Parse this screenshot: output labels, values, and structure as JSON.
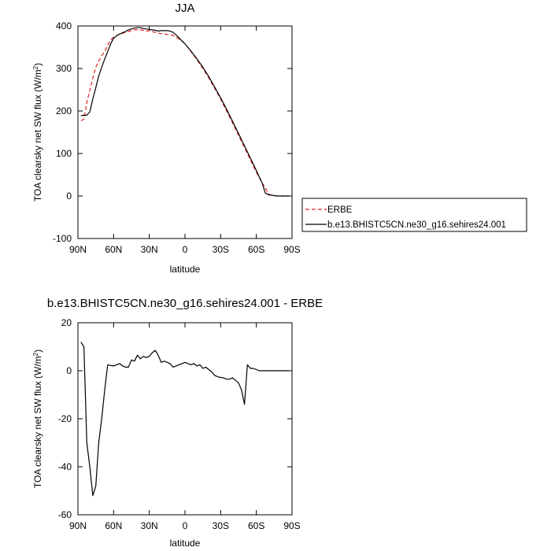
{
  "chart_data": [
    {
      "type": "line",
      "title": "JJA",
      "xlabel": "latitude",
      "ylabel": "TOA clearsky net SW flux (W/m",
      "ylabel_sup": "2",
      "ylabel_close": ")",
      "ylim": [
        -100,
        400
      ],
      "xlim": [
        90,
        -90
      ],
      "x_tick_values": [
        90,
        60,
        30,
        0,
        -30,
        -60,
        -90
      ],
      "x_tick_labels": [
        "90N",
        "60N",
        "30N",
        "0",
        "30S",
        "60S",
        "90S"
      ],
      "y_tick_values": [
        -100,
        0,
        100,
        200,
        300,
        400
      ],
      "y_tick_labels": [
        "-100",
        "0",
        "100",
        "200",
        "300",
        "400"
      ],
      "grid": false,
      "legend_position": "right",
      "series": [
        {
          "name": "ERBE",
          "color": "#e02020",
          "dash": "dashed",
          "x": [
            87.5,
            85,
            82.5,
            80,
            77.5,
            75,
            72.5,
            70,
            67.5,
            65,
            62.5,
            60,
            57.5,
            55,
            52.5,
            50,
            47.5,
            45,
            42.5,
            40,
            37.5,
            35,
            32.5,
            30,
            27.5,
            25,
            22.5,
            20,
            17.5,
            15,
            12.5,
            10,
            7.5,
            5,
            2.5,
            0,
            -5,
            -10,
            -15,
            -20,
            -25,
            -30,
            -35,
            -40,
            -45,
            -50,
            -55,
            -60,
            -62.5,
            -65,
            -67.5,
            -70,
            -72.5,
            -75,
            -77.5,
            -80,
            -82.5,
            -85,
            -87.5
          ],
          "values": [
            177,
            181,
            220,
            248,
            278,
            303,
            318,
            330,
            340,
            355,
            367,
            374,
            377,
            381,
            383,
            385,
            387,
            389,
            391,
            391,
            391,
            390,
            388,
            389,
            387,
            385,
            383,
            382,
            381,
            380,
            380,
            378,
            374,
            369,
            364,
            358,
            340,
            321,
            300,
            278,
            253,
            228,
            200,
            172,
            143,
            114,
            85,
            56,
            43,
            30,
            20,
            5,
            2,
            1,
            0,
            0,
            0,
            0,
            0
          ]
        },
        {
          "name": "b.e13.BHISTC5CN.ne30_g16.sehires24.001",
          "color": "#000000",
          "dash": "solid",
          "x": [
            87.5,
            85,
            82.5,
            80,
            77.5,
            75,
            72.5,
            70,
            67.5,
            65,
            62.5,
            60,
            57.5,
            55,
            52.5,
            50,
            47.5,
            45,
            42.5,
            40,
            37.5,
            35,
            32.5,
            30,
            27.5,
            25,
            22.5,
            20,
            17.5,
            15,
            12.5,
            10,
            7.5,
            5,
            2.5,
            0,
            -5,
            -10,
            -15,
            -20,
            -25,
            -30,
            -35,
            -40,
            -45,
            -50,
            -55,
            -60,
            -62.5,
            -65,
            -67.5,
            -70,
            -72.5,
            -75,
            -77.5,
            -80,
            -82.5,
            -85,
            -87.5
          ],
          "values": [
            189,
            190,
            190,
            198,
            228,
            255,
            282,
            303,
            322,
            340,
            358,
            371,
            377,
            381,
            384,
            387,
            391,
            393,
            395,
            396,
            396,
            394,
            393,
            392,
            391,
            390,
            388,
            389,
            389,
            389,
            388,
            385,
            379,
            372,
            365,
            358,
            341,
            323,
            303,
            281,
            256,
            231,
            204,
            176,
            147,
            118,
            89,
            60,
            45,
            30,
            7,
            3,
            2,
            1,
            0,
            0,
            0,
            0,
            0
          ]
        }
      ]
    },
    {
      "type": "line",
      "title": "b.e13.BHISTC5CN.ne30_g16.sehires24.001 - ERBE",
      "xlabel": "latitude",
      "ylabel": "TOA clearsky net SW flux (W/m",
      "ylabel_sup": "2",
      "ylabel_close": ")",
      "ylim": [
        -60,
        20
      ],
      "xlim": [
        90,
        -90
      ],
      "x_tick_values": [
        90,
        60,
        30,
        0,
        -30,
        -60,
        -90
      ],
      "x_tick_labels": [
        "90N",
        "60N",
        "30N",
        "0",
        "30S",
        "60S",
        "90S"
      ],
      "y_tick_values": [
        -60,
        -40,
        -20,
        0,
        20
      ],
      "y_tick_labels": [
        "-60",
        "-40",
        "-20",
        "0",
        "20"
      ],
      "grid": false,
      "series": [
        {
          "color": "#000000",
          "dash": "solid",
          "x": [
            87.5,
            85,
            82.5,
            80,
            77.5,
            75,
            72.5,
            70,
            67.5,
            65,
            62.5,
            60,
            57.5,
            55,
            52.5,
            50,
            47.5,
            45,
            42.5,
            40,
            37.5,
            35,
            32.5,
            30,
            27.5,
            25,
            22.5,
            20,
            17.5,
            15,
            12.5,
            10,
            7.5,
            5,
            2.5,
            0,
            -2.5,
            -5,
            -7.5,
            -10,
            -12.5,
            -15,
            -17.5,
            -20,
            -22.5,
            -25,
            -27.5,
            -30,
            -32.5,
            -35,
            -37.5,
            -40,
            -42.5,
            -45,
            -47.5,
            -50,
            -52.5,
            -55,
            -57.5,
            -60,
            -62.5,
            -65,
            -66.5,
            -67.5,
            -70,
            -72.5,
            -75,
            -77.5,
            -80,
            -82.5,
            -85,
            -87.5
          ],
          "values": [
            12,
            10,
            -30,
            -40,
            -52,
            -48,
            -30,
            -20,
            -8,
            2.5,
            2.2,
            2.0,
            2.5,
            3.0,
            2.0,
            1.5,
            1.5,
            4.5,
            4.0,
            6.5,
            5.0,
            6.0,
            5.5,
            6.0,
            7.5,
            8.5,
            6.5,
            3.5,
            4.0,
            3.5,
            3.0,
            1.5,
            2.0,
            2.5,
            3.0,
            3.5,
            3.0,
            2.5,
            3.0,
            2.0,
            2.5,
            1.0,
            1.5,
            0.5,
            -0.5,
            -2.0,
            -2.5,
            -2.8,
            -3.0,
            -3.5,
            -3.5,
            -3.0,
            -4.0,
            -5.0,
            -8.0,
            -14,
            2.5,
            1.0,
            1.0,
            0.5,
            0,
            0,
            0,
            0,
            0,
            0,
            0,
            0,
            0,
            0,
            0,
            0
          ]
        }
      ]
    }
  ]
}
